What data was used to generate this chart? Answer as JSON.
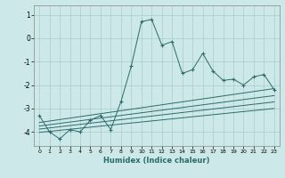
{
  "title": "",
  "xlabel": "Humidex (Indice chaleur)",
  "ylabel": "",
  "bg_color": "#cce8e8",
  "line_color": "#2d6b6b",
  "grid_color": "#aacccc",
  "xlim": [
    -0.5,
    23.5
  ],
  "ylim": [
    -4.6,
    1.4
  ],
  "yticks": [
    1,
    0,
    -1,
    -2,
    -3,
    -4
  ],
  "xticks": [
    0,
    1,
    2,
    3,
    4,
    5,
    6,
    7,
    8,
    9,
    10,
    11,
    12,
    13,
    14,
    15,
    16,
    17,
    18,
    19,
    20,
    21,
    22,
    23
  ],
  "main_series_x": [
    0,
    1,
    2,
    3,
    4,
    5,
    6,
    7,
    8,
    9,
    10,
    11,
    12,
    13,
    14,
    15,
    16,
    17,
    18,
    19,
    20,
    21,
    22,
    23
  ],
  "main_series_y": [
    -3.3,
    -4.0,
    -4.3,
    -3.9,
    -4.0,
    -3.5,
    -3.3,
    -3.9,
    -2.7,
    -1.2,
    0.7,
    0.8,
    -0.3,
    -0.15,
    -1.5,
    -1.35,
    -0.65,
    -1.4,
    -1.8,
    -1.75,
    -2.0,
    -1.65,
    -1.55,
    -2.2
  ],
  "straight_lines": [
    {
      "x": [
        0,
        23
      ],
      "y": [
        -3.6,
        -2.15
      ]
    },
    {
      "x": [
        0,
        23
      ],
      "y": [
        -3.75,
        -2.45
      ]
    },
    {
      "x": [
        0,
        23
      ],
      "y": [
        -3.88,
        -2.72
      ]
    },
    {
      "x": [
        0,
        23
      ],
      "y": [
        -4.02,
        -3.0
      ]
    }
  ]
}
